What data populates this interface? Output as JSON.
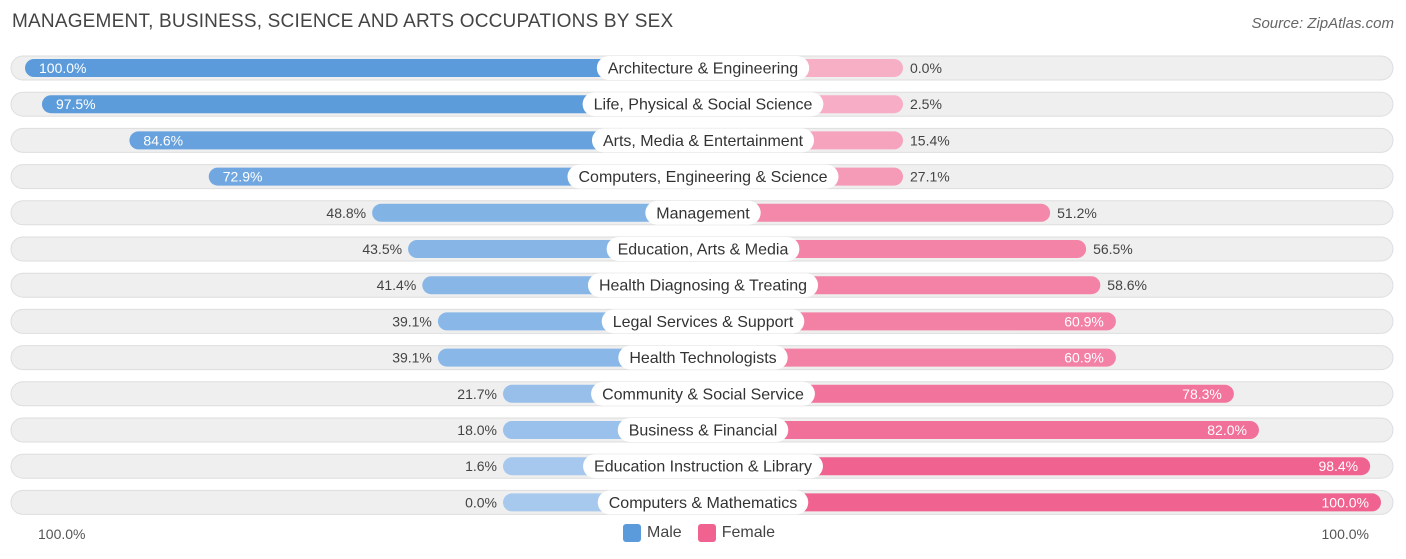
{
  "header": {
    "title": "MANAGEMENT, BUSINESS, SCIENCE AND ARTS OCCUPATIONS BY SEX",
    "source": "Source: ZipAtlas.com"
  },
  "axis": {
    "left_label": "100.0%",
    "right_label": "100.0%"
  },
  "legend": {
    "male_label": "Male",
    "female_label": "Female"
  },
  "colors": {
    "male_strong": "#5b9bdb",
    "male_light": "#a7c9ee",
    "female_strong": "#f0628f",
    "female_light": "#f7afc6",
    "track": "#efefef",
    "track_border": "#dedede"
  },
  "chart_data": {
    "type": "bar",
    "orientation": "horizontal-diverging",
    "title": "MANAGEMENT, BUSINESS, SCIENCE AND ARTS OCCUPATIONS BY SEX",
    "xlim": [
      -100,
      100
    ],
    "categories": [
      "Architecture & Engineering",
      "Life, Physical & Social Science",
      "Arts, Media & Entertainment",
      "Computers, Engineering & Science",
      "Management",
      "Education, Arts & Media",
      "Health Diagnosing & Treating",
      "Legal Services & Support",
      "Health Technologists",
      "Community & Social Service",
      "Business & Financial",
      "Education Instruction & Library",
      "Computers & Mathematics"
    ],
    "series": [
      {
        "name": "Male",
        "values": [
          100.0,
          97.5,
          84.6,
          72.9,
          48.8,
          43.5,
          41.4,
          39.1,
          39.1,
          21.7,
          18.0,
          1.6,
          0.0
        ],
        "labels": [
          "100.0%",
          "97.5%",
          "84.6%",
          "72.9%",
          "48.8%",
          "43.5%",
          "41.4%",
          "39.1%",
          "39.1%",
          "21.7%",
          "18.0%",
          "1.6%",
          "0.0%"
        ]
      },
      {
        "name": "Female",
        "values": [
          0.0,
          2.5,
          15.4,
          27.1,
          51.2,
          56.5,
          58.6,
          60.9,
          60.9,
          78.3,
          82.0,
          98.4,
          100.0
        ],
        "labels": [
          "0.0%",
          "2.5%",
          "15.4%",
          "27.1%",
          "51.2%",
          "56.5%",
          "58.6%",
          "60.9%",
          "60.9%",
          "78.3%",
          "82.0%",
          "98.4%",
          "100.0%"
        ]
      }
    ]
  }
}
